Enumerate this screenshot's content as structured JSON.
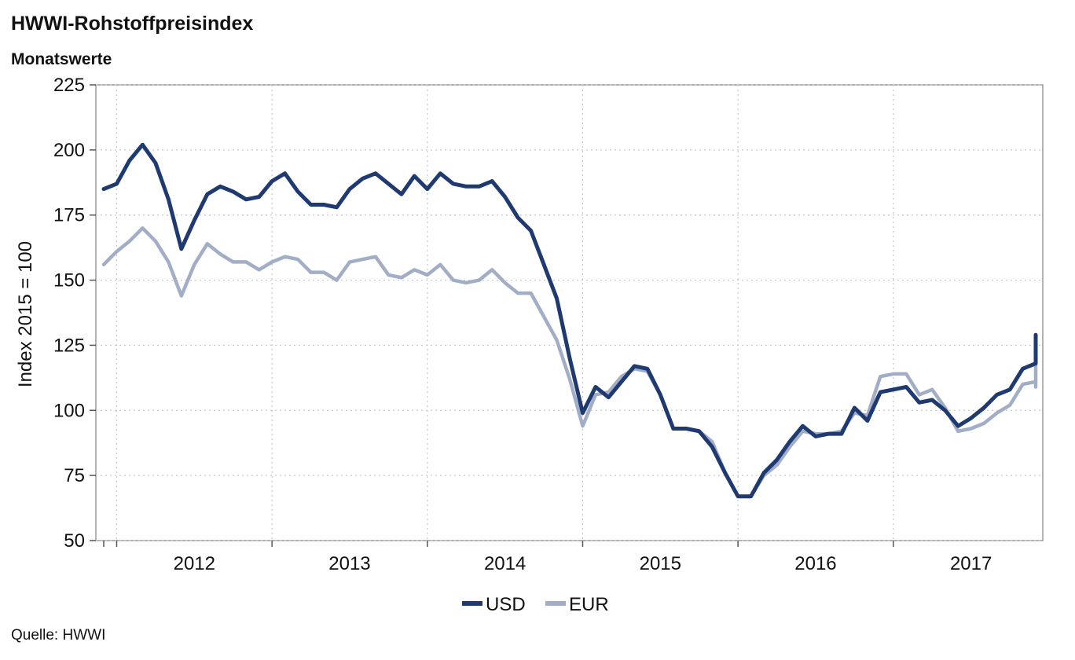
{
  "chart_data": {
    "type": "line",
    "title": "HWWI-Rohstoffpreisindex",
    "subtitle": "Monatswerte",
    "ylabel": "Index 2015 = 100",
    "xlabel": "",
    "ylim": [
      50,
      225
    ],
    "yticks": [
      50,
      75,
      100,
      125,
      150,
      175,
      200,
      225
    ],
    "x_start": "2011-12",
    "x_end": "2017-12",
    "year_labels": [
      "2012",
      "2013",
      "2014",
      "2015",
      "2016",
      "2017"
    ],
    "grid": true,
    "legend_position": "bottom-center",
    "colors": {
      "USD": "#1f3a70",
      "EUR": "#a2adc6",
      "grid": "#c8c8c8",
      "frame": "#9a9a9a"
    },
    "x": [
      "2011-12",
      "2012-01",
      "2012-02",
      "2012-03",
      "2012-04",
      "2012-05",
      "2012-06",
      "2012-07",
      "2012-08",
      "2012-09",
      "2012-10",
      "2012-11",
      "2012-12",
      "2013-01",
      "2013-02",
      "2013-03",
      "2013-04",
      "2013-05",
      "2013-06",
      "2013-07",
      "2013-08",
      "2013-09",
      "2013-10",
      "2013-11",
      "2013-12",
      "2014-01",
      "2014-02",
      "2014-03",
      "2014-04",
      "2014-05",
      "2014-06",
      "2014-07",
      "2014-08",
      "2014-09",
      "2014-10",
      "2014-11",
      "2014-12",
      "2015-01",
      "2015-02",
      "2015-03",
      "2015-04",
      "2015-05",
      "2015-06",
      "2015-07",
      "2015-08",
      "2015-09",
      "2015-10",
      "2015-11",
      "2015-12",
      "2016-01",
      "2016-02",
      "2016-03",
      "2016-04",
      "2016-05",
      "2016-06",
      "2016-07",
      "2016-08",
      "2016-09",
      "2016-10",
      "2016-11",
      "2016-12",
      "2017-01",
      "2017-02",
      "2017-03",
      "2017-04",
      "2017-05",
      "2017-06",
      "2017-07",
      "2017-08",
      "2017-09",
      "2017-10",
      "2017-11",
      "2017-12"
    ],
    "series": [
      {
        "name": "USD",
        "values": [
          185,
          187,
          196,
          202,
          195,
          181,
          162,
          173,
          183,
          186,
          184,
          181,
          182,
          188,
          191,
          184,
          179,
          179,
          178,
          185,
          189,
          191,
          187,
          183,
          190,
          185,
          191,
          187,
          186,
          186,
          188,
          182,
          174,
          169,
          156,
          143,
          120,
          99,
          109,
          105,
          111,
          117,
          116,
          106,
          93,
          93,
          92,
          86,
          76,
          67,
          67,
          76,
          81,
          88,
          94,
          90,
          91,
          91,
          101,
          96,
          107,
          108,
          109,
          103,
          104,
          100,
          94,
          97,
          101,
          106,
          108,
          116,
          118
        ]
      },
      {
        "name": "EUR",
        "values": [
          156,
          161,
          165,
          170,
          165,
          157,
          144,
          156,
          164,
          160,
          157,
          157,
          154,
          157,
          159,
          158,
          153,
          153,
          150,
          157,
          158,
          159,
          152,
          151,
          154,
          152,
          156,
          150,
          149,
          150,
          154,
          149,
          145,
          145,
          136,
          127,
          112,
          94,
          106,
          107,
          113,
          116,
          115,
          106,
          93,
          93,
          92,
          88,
          76,
          67,
          67,
          75,
          79,
          86,
          92,
          91,
          91,
          92,
          99,
          98,
          113,
          114,
          114,
          106,
          108,
          101,
          92,
          93,
          95,
          99,
          102,
          110,
          111
        ]
      }
    ],
    "end_values": {
      "USD": [
        129,
        122
      ],
      "EUR": [
        117,
        109
      ]
    }
  },
  "legend": {
    "items": [
      {
        "label": "USD"
      },
      {
        "label": "EUR"
      }
    ]
  },
  "source": "Quelle: HWWI"
}
